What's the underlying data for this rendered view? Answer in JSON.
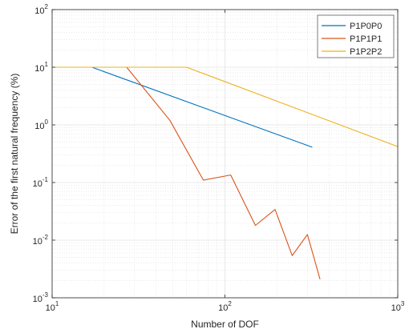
{
  "chart_data": {
    "type": "line",
    "title": "",
    "xlabel": "Number of DOF",
    "ylabel": "Error of the first natural frequency (%)",
    "xscale": "log",
    "yscale": "log",
    "xlim": [
      10,
      1000
    ],
    "ylim": [
      0.001,
      100
    ],
    "grid": true,
    "minor_grid": true,
    "legend_position": "top-right",
    "x_ticks": [
      {
        "base": "10",
        "exp": "1",
        "value": 10
      },
      {
        "base": "10",
        "exp": "2",
        "value": 100
      },
      {
        "base": "10",
        "exp": "3",
        "value": 1000
      }
    ],
    "y_ticks": [
      {
        "base": "10",
        "exp": "-3",
        "value": 0.001
      },
      {
        "base": "10",
        "exp": "-2",
        "value": 0.01
      },
      {
        "base": "10",
        "exp": "-1",
        "value": 0.1
      },
      {
        "base": "10",
        "exp": "0",
        "value": 1
      },
      {
        "base": "10",
        "exp": "1",
        "value": 10
      },
      {
        "base": "10",
        "exp": "2",
        "value": 100
      }
    ],
    "series": [
      {
        "name": "P1P0P0",
        "color": "#0072BD",
        "x": [
          10,
          17,
          320
        ],
        "y": [
          10,
          10,
          0.41
        ]
      },
      {
        "name": "P1P1P1",
        "color": "#D95319",
        "x": [
          10,
          27,
          48,
          75,
          108,
          150,
          195,
          245,
          300,
          355
        ],
        "y": [
          10,
          10,
          1.2,
          0.11,
          0.135,
          0.018,
          0.034,
          0.0054,
          0.0125,
          0.0021
        ]
      },
      {
        "name": "P1P2P2",
        "color": "#EDB120",
        "x": [
          10,
          60,
          1000
        ],
        "y": [
          10,
          10,
          0.42
        ]
      }
    ]
  }
}
